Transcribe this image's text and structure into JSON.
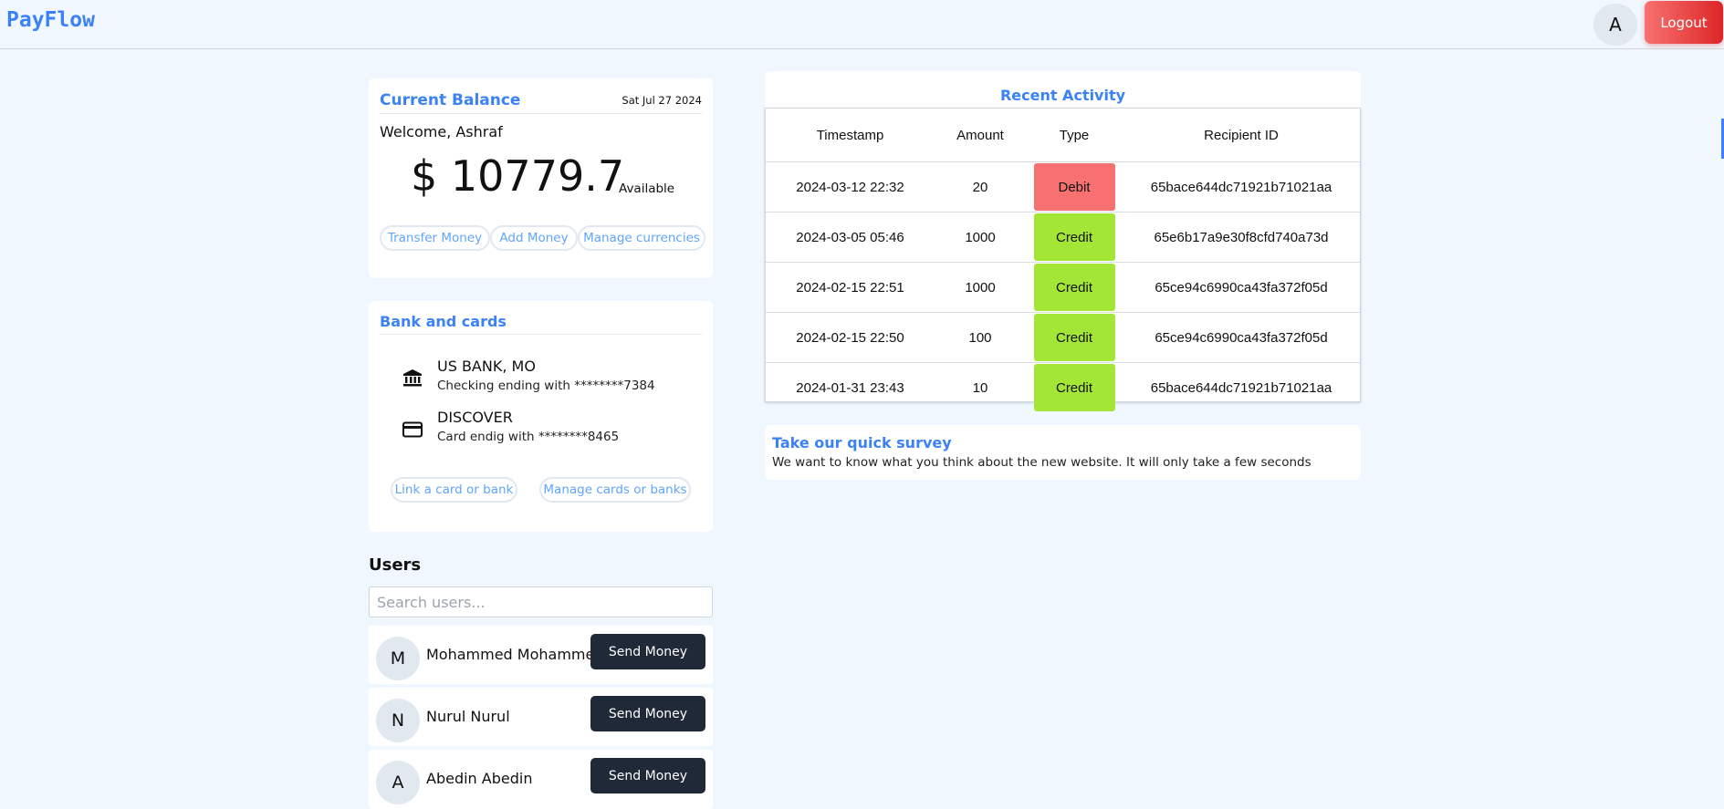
{
  "header": {
    "brand": "PayFlow",
    "avatar_initial": "A",
    "logout_label": "Logout"
  },
  "balance_card": {
    "title": "Current Balance",
    "date": "Sat Jul 27 2024",
    "welcome": "Welcome, Ashraf",
    "amount": "$ 10779.7",
    "available_label": "Available",
    "actions": [
      "Transfer Money",
      "Add Money",
      "Manage currencies"
    ]
  },
  "bank_card": {
    "title": "Bank and cards",
    "accounts": [
      {
        "icon": "bank-icon",
        "name": "US BANK, MO",
        "detail": "Checking ending with ********7384"
      },
      {
        "icon": "credit-card-icon",
        "name": "DISCOVER",
        "detail": "Card endig with ********8465"
      }
    ],
    "actions": [
      "Link a card or bank",
      "Manage cards or banks"
    ]
  },
  "users": {
    "title": "Users",
    "search_placeholder": "Search users...",
    "send_label": "Send Money",
    "list": [
      {
        "initial": "M",
        "name": "Mohammed Mohammed"
      },
      {
        "initial": "N",
        "name": "Nurul Nurul"
      },
      {
        "initial": "A",
        "name": "Abedin Abedin"
      }
    ]
  },
  "activity": {
    "title": "Recent Activity",
    "columns": [
      "Timestamp",
      "Amount",
      "Type",
      "Recipient ID"
    ],
    "rows": [
      {
        "timestamp": "2024-03-12 22:32",
        "amount": "20",
        "type": "Debit",
        "recipient": "65bace644dc71921b71021aa"
      },
      {
        "timestamp": "2024-03-05 05:46",
        "amount": "1000",
        "type": "Credit",
        "recipient": "65e6b17a9e30f8cfd740a73d"
      },
      {
        "timestamp": "2024-02-15 22:51",
        "amount": "1000",
        "type": "Credit",
        "recipient": "65ce94c6990ca43fa372f05d"
      },
      {
        "timestamp": "2024-02-15 22:50",
        "amount": "100",
        "type": "Credit",
        "recipient": "65ce94c6990ca43fa372f05d"
      },
      {
        "timestamp": "2024-01-31 23:43",
        "amount": "10",
        "type": "Credit",
        "recipient": "65bace644dc71921b71021aa"
      }
    ],
    "type_colors": {
      "Debit": "#f87171",
      "Credit": "#a3e635"
    }
  },
  "survey": {
    "title": "Take our quick survey",
    "text": "We want to know what you think about the new website. It will only take a few seconds"
  }
}
